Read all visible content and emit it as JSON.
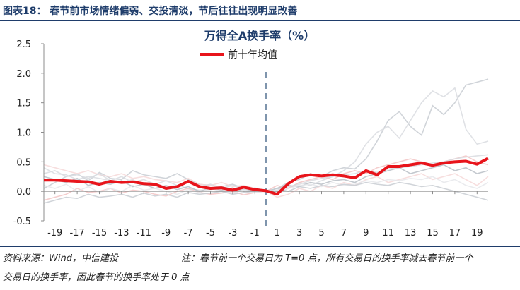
{
  "header": {
    "figure_title": "图表18： 春节前市场情绪偏弱、交投清淡，节后往往出现明显改善"
  },
  "footer": {
    "source": "资料来源：Wind，中信建投",
    "note_line1": "注：春节前一个交易日为 T=0 点，所有交易日的换手率减去春节前一个",
    "note_line2": "交易日的换手率，因此春节的换手率处于 0 点"
  },
  "chart_data": {
    "type": "line",
    "title": "万得全A换手率（%）",
    "ylim": [
      -0.5,
      2.5
    ],
    "yticks": [
      2.5,
      2.0,
      1.5,
      1.0,
      0.5,
      0.0,
      -0.5
    ],
    "ytick_labels": [
      "2.5",
      "2.0",
      "1.5",
      "1.0",
      "0.5",
      "0.0",
      "-0.5"
    ],
    "x": [
      -20,
      -19,
      -18,
      -17,
      -16,
      -15,
      -14,
      -13,
      -12,
      -11,
      -10,
      -9,
      -8,
      -7,
      -6,
      -5,
      -4,
      -3,
      -2,
      -1,
      0,
      1,
      2,
      3,
      4,
      5,
      6,
      7,
      8,
      9,
      10,
      11,
      12,
      13,
      14,
      15,
      16,
      17,
      18,
      19,
      20
    ],
    "xtick_labels": [
      "-19",
      "-17",
      "-15",
      "-13",
      "-11",
      "-9",
      "-7",
      "-5",
      "-3",
      "-1",
      "1",
      "3",
      "5",
      "7",
      "9",
      "11",
      "13",
      "15",
      "17",
      "19"
    ],
    "xtick_values": [
      -19,
      -17,
      -15,
      -13,
      -11,
      -9,
      -7,
      -5,
      -3,
      -1,
      1,
      3,
      5,
      7,
      9,
      11,
      13,
      15,
      17,
      19
    ],
    "vline_x": 0,
    "colors": {
      "highlight": "#e8141b",
      "background_lines": [
        "#c8ccd2",
        "#d9dce0",
        "#f2c4c4",
        "#f6d8d8",
        "#b9bec6",
        "#e6e8eb"
      ],
      "axis": "#8c8c8c",
      "vline": "#7f95ad",
      "title": "#1f3d6b"
    },
    "highlight_series": {
      "name": "前十年均值",
      "values": [
        0.19,
        0.19,
        0.18,
        0.17,
        0.16,
        0.12,
        0.17,
        0.15,
        0.16,
        0.13,
        0.12,
        0.05,
        0.08,
        0.17,
        0.08,
        0.05,
        0.06,
        0.02,
        0.07,
        0.03,
        0.01,
        -0.05,
        0.13,
        0.25,
        0.28,
        0.26,
        0.28,
        0.26,
        0.23,
        0.35,
        0.28,
        0.42,
        0.42,
        0.45,
        0.48,
        0.44,
        0.48,
        0.5,
        0.51,
        0.46,
        0.56
      ]
    },
    "series": [
      {
        "values": [
          0.05,
          0.15,
          0.25,
          0.3,
          0.18,
          0.32,
          0.22,
          0.2,
          0.35,
          0.28,
          0.25,
          0.22,
          0.3,
          0.2,
          0.12,
          0.1,
          0.08,
          0.12,
          0.05,
          0.02,
          0.0,
          0.05,
          0.15,
          0.2,
          0.3,
          0.25,
          0.35,
          0.4,
          0.38,
          0.55,
          0.85,
          1.2,
          1.35,
          1.1,
          0.95,
          1.45,
          1.3,
          1.5,
          1.8,
          1.85,
          1.9
        ]
      },
      {
        "values": [
          0.4,
          0.3,
          0.28,
          0.2,
          0.25,
          0.22,
          0.18,
          0.15,
          0.2,
          0.1,
          0.12,
          0.08,
          0.1,
          0.05,
          0.02,
          0.03,
          0.06,
          0.04,
          0.03,
          0.02,
          0.0,
          -0.02,
          0.05,
          0.15,
          0.1,
          0.18,
          0.25,
          0.35,
          0.5,
          0.8,
          1.0,
          1.1,
          0.9,
          1.2,
          1.5,
          1.7,
          1.6,
          1.75,
          1.05,
          0.8,
          0.85
        ]
      },
      {
        "values": [
          -0.15,
          -0.1,
          -0.05,
          0.05,
          -0.02,
          0.0,
          0.05,
          -0.03,
          0.02,
          0.0,
          -0.05,
          -0.08,
          0.0,
          0.05,
          -0.02,
          -0.05,
          -0.03,
          0.0,
          -0.06,
          -0.02,
          0.0,
          0.1,
          0.05,
          0.15,
          0.2,
          0.25,
          0.2,
          0.3,
          0.35,
          0.3,
          0.4,
          0.45,
          0.5,
          0.55,
          0.5,
          0.45,
          0.5,
          0.55,
          0.6,
          0.5,
          0.45
        ]
      },
      {
        "values": [
          0.45,
          0.4,
          0.35,
          0.3,
          0.35,
          0.28,
          0.25,
          0.3,
          0.22,
          0.25,
          0.2,
          0.18,
          0.15,
          0.22,
          0.12,
          0.1,
          0.15,
          0.08,
          0.1,
          0.05,
          0.0,
          -0.1,
          -0.05,
          0.05,
          0.0,
          0.1,
          0.05,
          0.15,
          0.1,
          0.2,
          0.25,
          0.15,
          0.2,
          0.25,
          0.3,
          0.2,
          0.25,
          0.3,
          0.2,
          0.1,
          0.25
        ]
      },
      {
        "values": [
          0.25,
          0.2,
          0.15,
          0.22,
          0.1,
          0.15,
          0.12,
          0.18,
          0.08,
          0.12,
          0.05,
          0.1,
          0.03,
          0.08,
          0.0,
          0.05,
          0.02,
          0.06,
          0.0,
          0.03,
          0.0,
          0.05,
          0.1,
          0.08,
          0.15,
          0.12,
          0.18,
          0.2,
          0.15,
          0.25,
          0.3,
          0.35,
          0.4,
          0.3,
          0.35,
          0.4,
          0.45,
          0.35,
          0.4,
          0.3,
          0.35
        ]
      },
      {
        "values": [
          0.1,
          0.05,
          0.12,
          0.0,
          0.08,
          -0.02,
          0.05,
          0.0,
          0.1,
          0.02,
          0.05,
          0.0,
          -0.05,
          0.03,
          -0.02,
          0.05,
          0.0,
          -0.03,
          0.02,
          -0.02,
          0.0,
          0.0,
          0.05,
          0.1,
          0.12,
          0.08,
          0.15,
          0.1,
          0.12,
          0.18,
          0.15,
          0.2,
          0.18,
          0.22,
          0.2,
          0.25,
          0.15,
          0.2,
          0.1,
          0.05,
          0.15
        ]
      },
      {
        "values": [
          -0.2,
          -0.15,
          -0.1,
          -0.12,
          -0.05,
          -0.1,
          -0.08,
          -0.05,
          -0.1,
          -0.03,
          -0.08,
          -0.05,
          -0.1,
          -0.02,
          -0.05,
          -0.03,
          0.0,
          -0.05,
          -0.02,
          0.0,
          0.0,
          0.05,
          0.0,
          0.08,
          0.05,
          0.1,
          0.08,
          0.12,
          0.1,
          0.15,
          0.12,
          0.1,
          0.15,
          0.12,
          0.08,
          0.1,
          0.05,
          0.0,
          -0.05,
          -0.1,
          -0.15
        ]
      },
      {
        "values": [
          0.3,
          0.35,
          0.25,
          0.28,
          0.22,
          0.3,
          0.18,
          0.25,
          0.15,
          0.2,
          0.12,
          0.18,
          0.1,
          0.15,
          0.08,
          0.12,
          0.05,
          0.1,
          0.03,
          0.06,
          0.0,
          0.02,
          0.08,
          0.12,
          0.18,
          0.22,
          0.25,
          0.28,
          0.3,
          0.35,
          0.32,
          0.38,
          0.4,
          0.42,
          0.45,
          0.48,
          0.5,
          0.55,
          0.58,
          0.6,
          0.62
        ]
      }
    ]
  }
}
